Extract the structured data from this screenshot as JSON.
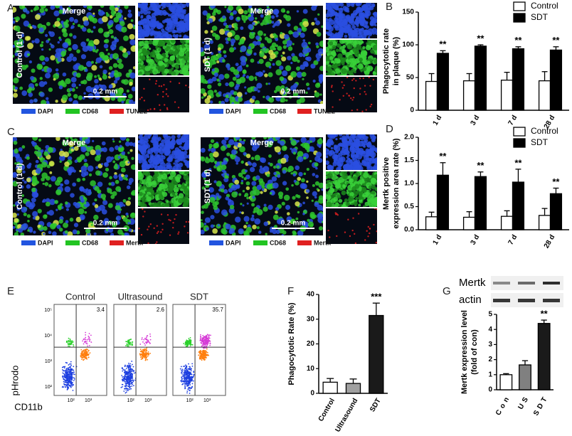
{
  "panel_labels": [
    "A",
    "B",
    "C",
    "D",
    "E",
    "F",
    "G"
  ],
  "panel_a": {
    "merge_titles": [
      "Merge",
      "Merge"
    ],
    "row_labels": [
      "Control (1 d)",
      "SDT (1 d)"
    ],
    "scale_bars": [
      "0.2 mm",
      "0.2 mm"
    ],
    "legend": [
      "DAPI",
      "CD68",
      "TUNEL"
    ]
  },
  "panel_c": {
    "merge_titles": [
      "Merge",
      "Merge"
    ],
    "row_labels": [
      "Control (1 d)",
      "SDT (1 d)"
    ],
    "scale_bars": [
      "0.2 mm",
      "0.2 mm"
    ],
    "legend": [
      "DAPI",
      "CD68",
      "Mertk"
    ]
  },
  "panel_e": {
    "titles": [
      "Control",
      "Ultrasound",
      "SDT"
    ],
    "quadrant_values": [
      3.4,
      2.6,
      35.7
    ],
    "y_label": "pHrodo",
    "x_label": "CD11b",
    "y_tick_labels": [
      "10⁵",
      "10⁴",
      "10³",
      "10²"
    ],
    "x_tick_labels": [
      "10²",
      "10³"
    ]
  },
  "panel_g": {
    "blot_labels": [
      "Mertk",
      "actin"
    ]
  },
  "chart_data": [
    {
      "type": "bar",
      "y_label": [
        "Phagocytotic rate",
        "in plaque (%)"
      ],
      "categories": [
        "1 d",
        "3 d",
        "7 d",
        "28 d"
      ],
      "series": [
        {
          "name": "Control",
          "color": "#ffffff",
          "values": [
            44,
            45,
            46,
            45
          ],
          "errors": [
            12,
            11,
            12,
            14
          ]
        },
        {
          "name": "SDT",
          "color": "#000000",
          "values": [
            87,
            98,
            94,
            92
          ],
          "errors": [
            4,
            2,
            3,
            5
          ]
        }
      ],
      "annotations": [
        "**",
        "**",
        "**",
        "**"
      ],
      "ylim": [
        0,
        150
      ],
      "yticks": [
        0,
        50,
        100,
        150
      ],
      "legend": "top-right"
    },
    {
      "type": "bar",
      "y_label": [
        "Mertk positive",
        "expression area rate (%)"
      ],
      "categories": [
        "1 d",
        "3 d",
        "7 d",
        "28 d"
      ],
      "series": [
        {
          "name": "Control",
          "color": "#ffffff",
          "values": [
            0.28,
            0.27,
            0.29,
            0.31
          ],
          "errors": [
            0.1,
            0.12,
            0.12,
            0.15
          ]
        },
        {
          "name": "SDT",
          "color": "#000000",
          "values": [
            1.18,
            1.15,
            1.03,
            0.78
          ],
          "errors": [
            0.27,
            0.1,
            0.28,
            0.12
          ]
        }
      ],
      "annotations": [
        "**",
        "**",
        "**",
        "**"
      ],
      "ylim": [
        0,
        2
      ],
      "yticks": [
        {
          "value": 0,
          "label": "0.0"
        },
        0.5,
        {
          "value": 1,
          "label": "1.0"
        },
        1.5,
        {
          "value": 2,
          "label": "2.0"
        }
      ],
      "legend": "top-right"
    },
    {
      "type": "bar",
      "y_label": [
        "Phagocytotic Rate (%)"
      ],
      "categories": [
        "Control",
        "Ultrasound",
        "SDT"
      ],
      "values": [
        4.5,
        4.0,
        31.5
      ],
      "errors": [
        1.5,
        1.8,
        5
      ],
      "colors": [
        "#ffffff",
        "#a0a0a0",
        "#1a1a1a"
      ],
      "annotations": [
        null,
        null,
        "***"
      ],
      "ylim": [
        0,
        40
      ],
      "yticks": [
        0,
        10,
        20,
        30,
        40
      ]
    },
    {
      "type": "bar",
      "y_label": [
        "Mertk expression level",
        "(fold of con)"
      ],
      "categories": [
        "Con",
        "US",
        "SDT"
      ],
      "values": [
        1.0,
        1.65,
        4.4
      ],
      "errors": [
        0.07,
        0.28,
        0.22
      ],
      "colors": [
        "#ffffff",
        "#808080",
        "#1a1a1a"
      ],
      "annotations": [
        null,
        null,
        "**"
      ],
      "ylim": [
        0,
        5
      ],
      "yticks": [
        0,
        1,
        2,
        3,
        4,
        5
      ]
    }
  ]
}
